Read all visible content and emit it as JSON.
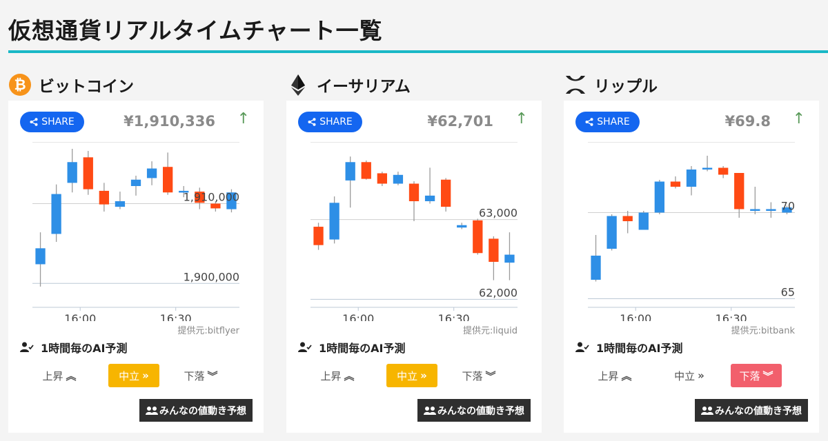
{
  "page": {
    "title": "仮想通貨リアルタイムチャート一覧"
  },
  "colors": {
    "accent": "#19b8c6",
    "share": "#1466f0",
    "up_candle": "#2e8fe6",
    "down_candle": "#ff4a14",
    "neutral_active": "#f7b500",
    "down_active": "#f25f6c"
  },
  "labels": {
    "share": "SHARE",
    "ai_title": "1時間毎のAI予測",
    "vote_up": "上昇",
    "vote_neutral": "中立",
    "vote_down": "下落",
    "everyone": "みんなの値動き予想"
  },
  "coins": [
    {
      "name": "ビットコイン",
      "icon": "bitcoin-icon",
      "price": "¥1,910,336",
      "trend": "↑",
      "source": "提供元:bitflyer",
      "active_vote": "neutral",
      "chart_data": {
        "type": "candlestick",
        "x_ticks": [
          "16:00",
          "16:30"
        ],
        "y_ticks": [
          "1,910,000",
          "1,900,000"
        ],
        "ylim": [
          1897000,
          1916000
        ],
        "candles": [
          {
            "o": 1902400,
            "c": 1904400,
            "h": 1906400,
            "l": 1899600
          },
          {
            "o": 1906200,
            "c": 1911200,
            "h": 1912400,
            "l": 1905200
          },
          {
            "o": 1912600,
            "c": 1915200,
            "h": 1917000,
            "l": 1911400
          },
          {
            "o": 1915800,
            "c": 1911800,
            "h": 1916600,
            "l": 1911100
          },
          {
            "o": 1911600,
            "c": 1909900,
            "h": 1912600,
            "l": 1909000
          },
          {
            "o": 1909600,
            "c": 1910300,
            "h": 1911500,
            "l": 1909300
          },
          {
            "o": 1912200,
            "c": 1913000,
            "h": 1913500,
            "l": 1911000
          },
          {
            "o": 1913200,
            "c": 1914400,
            "h": 1915300,
            "l": 1912300
          },
          {
            "o": 1914600,
            "c": 1911400,
            "h": 1916400,
            "l": 1911100
          },
          {
            "o": 1911400,
            "c": 1911600,
            "h": 1912200,
            "l": 1910800
          },
          {
            "o": 1911500,
            "c": 1910100,
            "h": 1912000,
            "l": 1909300
          },
          {
            "o": 1910000,
            "c": 1909400,
            "h": 1910300,
            "l": 1909000
          },
          {
            "o": 1909300,
            "c": 1911400,
            "h": 1911800,
            "l": 1908900
          }
        ]
      }
    },
    {
      "name": "イーサリアム",
      "icon": "ethereum-icon",
      "price": "¥62,701",
      "trend": "↑",
      "source": "提供元:liquid",
      "active_vote": "neutral",
      "chart_data": {
        "type": "candlestick",
        "x_ticks": [
          "16:00",
          "16:30"
        ],
        "y_ticks": [
          "63,000",
          "62,000"
        ],
        "ylim": [
          61900,
          63800
        ],
        "candles": [
          {
            "o": 62910,
            "c": 62680,
            "h": 62960,
            "l": 62620
          },
          {
            "o": 62750,
            "c": 63210,
            "h": 63290,
            "l": 62700
          },
          {
            "o": 63490,
            "c": 63720,
            "h": 63790,
            "l": 63150
          },
          {
            "o": 63720,
            "c": 63510,
            "h": 63740,
            "l": 63500
          },
          {
            "o": 63580,
            "c": 63450,
            "h": 63600,
            "l": 63420
          },
          {
            "o": 63450,
            "c": 63560,
            "h": 63600,
            "l": 63430
          },
          {
            "o": 63450,
            "c": 63230,
            "h": 63480,
            "l": 62980
          },
          {
            "o": 63230,
            "c": 63300,
            "h": 63650,
            "l": 63200
          },
          {
            "o": 63500,
            "c": 63160,
            "h": 63520,
            "l": 63100
          },
          {
            "o": 62900,
            "c": 62930,
            "h": 62960,
            "l": 62880
          },
          {
            "o": 62990,
            "c": 62580,
            "h": 63010,
            "l": 62560
          },
          {
            "o": 62760,
            "c": 62470,
            "h": 62790,
            "l": 62240
          },
          {
            "o": 62460,
            "c": 62560,
            "h": 62840,
            "l": 62240
          }
        ]
      }
    },
    {
      "name": "リップル",
      "icon": "xrp-icon",
      "price": "¥69.8",
      "trend": "↑",
      "source": "提供元:bitbank",
      "active_vote": "down",
      "chart_data": {
        "type": "candlestick",
        "x_ticks": [
          "16:00",
          "16:30"
        ],
        "y_ticks": [
          "70",
          "65"
        ],
        "ylim": [
          64.5,
          73.3
        ],
        "candles": [
          {
            "o": 66.1,
            "c": 67.5,
            "h": 68.7,
            "l": 66.0
          },
          {
            "o": 67.9,
            "c": 69.8,
            "h": 69.9,
            "l": 67.8
          },
          {
            "o": 69.8,
            "c": 69.5,
            "h": 70.1,
            "l": 68.8
          },
          {
            "o": 69.0,
            "c": 70.0,
            "h": 70.1,
            "l": 69.0
          },
          {
            "o": 70.0,
            "c": 71.8,
            "h": 71.9,
            "l": 69.9
          },
          {
            "o": 71.8,
            "c": 71.5,
            "h": 72.1,
            "l": 71.4
          },
          {
            "o": 71.5,
            "c": 72.5,
            "h": 72.7,
            "l": 71.0
          },
          {
            "o": 72.5,
            "c": 72.6,
            "h": 73.3,
            "l": 72.4
          },
          {
            "o": 72.6,
            "c": 72.2,
            "h": 72.7,
            "l": 72.0
          },
          {
            "o": 72.3,
            "c": 70.2,
            "h": 72.3,
            "l": 69.7
          },
          {
            "o": 70.1,
            "c": 70.2,
            "h": 71.5,
            "l": 69.9
          },
          {
            "o": 70.1,
            "c": 70.2,
            "h": 70.6,
            "l": 69.7
          },
          {
            "o": 70.0,
            "c": 70.3,
            "h": 70.4,
            "l": 69.9
          }
        ]
      }
    }
  ]
}
